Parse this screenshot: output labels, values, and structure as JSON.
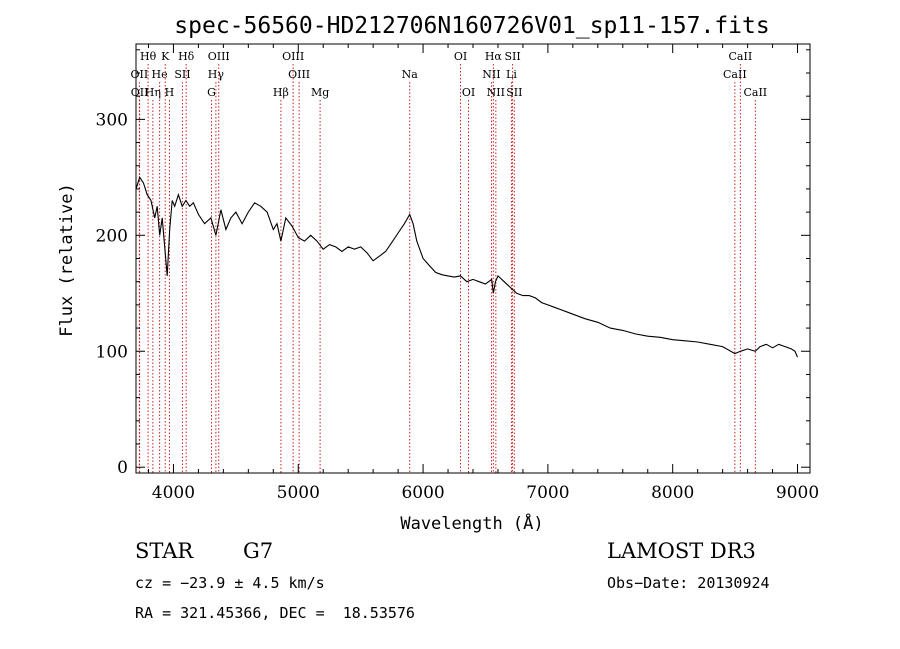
{
  "chart_data": {
    "type": "line",
    "title": "spec-56560-HD212706N160726V01_sp11-157.fits",
    "xlabel": "Wavelength (Å)",
    "ylabel": "Flux (relative)",
    "xlim": [
      3700,
      9100
    ],
    "ylim": [
      -5,
      365
    ],
    "xticks": [
      4000,
      5000,
      6000,
      7000,
      8000,
      9000
    ],
    "yticks": [
      0,
      100,
      200,
      300
    ],
    "series": [
      {
        "name": "flux",
        "x": [
          3700,
          3730,
          3760,
          3790,
          3820,
          3850,
          3870,
          3890,
          3910,
          3930,
          3950,
          3970,
          3990,
          4010,
          4040,
          4070,
          4100,
          4130,
          4160,
          4200,
          4250,
          4300,
          4340,
          4380,
          4420,
          4460,
          4500,
          4550,
          4600,
          4650,
          4700,
          4750,
          4800,
          4830,
          4861,
          4900,
          4950,
          5000,
          5050,
          5100,
          5150,
          5200,
          5250,
          5300,
          5350,
          5400,
          5450,
          5500,
          5550,
          5600,
          5650,
          5700,
          5750,
          5800,
          5850,
          5893,
          5920,
          5950,
          6000,
          6050,
          6100,
          6150,
          6200,
          6250,
          6300,
          6350,
          6400,
          6450,
          6500,
          6550,
          6563,
          6580,
          6600,
          6650,
          6700,
          6750,
          6800,
          6850,
          6900,
          6950,
          7000,
          7050,
          7100,
          7150,
          7200,
          7300,
          7400,
          7500,
          7600,
          7700,
          7800,
          7900,
          8000,
          8100,
          8200,
          8300,
          8400,
          8498,
          8542,
          8600,
          8662,
          8700,
          8750,
          8800,
          8850,
          8900,
          8950,
          8980,
          9000
        ],
        "values": [
          240,
          250,
          245,
          235,
          230,
          215,
          225,
          200,
          215,
          190,
          165,
          205,
          230,
          225,
          235,
          225,
          230,
          225,
          228,
          218,
          210,
          215,
          200,
          222,
          205,
          215,
          220,
          210,
          220,
          228,
          225,
          220,
          205,
          210,
          195,
          215,
          208,
          198,
          195,
          200,
          195,
          188,
          192,
          190,
          186,
          190,
          188,
          190,
          185,
          178,
          182,
          186,
          194,
          202,
          210,
          218,
          210,
          195,
          180,
          174,
          168,
          166,
          165,
          164,
          165,
          160,
          162,
          160,
          158,
          162,
          150,
          160,
          165,
          160,
          155,
          150,
          148,
          148,
          146,
          142,
          140,
          138,
          136,
          134,
          132,
          128,
          125,
          120,
          118,
          115,
          113,
          112,
          110,
          109,
          108,
          106,
          104,
          98,
          100,
          102,
          100,
          104,
          106,
          103,
          106,
          104,
          102,
          100,
          95
        ]
      }
    ],
    "spectral_lines_top": [
      {
        "label": "Hθ",
        "wavelength": 3797
      },
      {
        "label": "K",
        "wavelength": 3934
      },
      {
        "label": "Hδ",
        "wavelength": 4102
      },
      {
        "label": "OIII",
        "wavelength": 4363
      },
      {
        "label": "OIII",
        "wavelength": 4959
      },
      {
        "label": "OI",
        "wavelength": 6300
      },
      {
        "label": "Hα",
        "wavelength": 6563
      },
      {
        "label": "SII",
        "wavelength": 6717
      },
      {
        "label": "CaII",
        "wavelength": 8542
      }
    ],
    "spectral_lines_mid": [
      {
        "label": "OII",
        "wavelength": 3727
      },
      {
        "label": "He",
        "wavelength": 3889
      },
      {
        "label": "SII",
        "wavelength": 4072
      },
      {
        "label": "Hγ",
        "wavelength": 4340
      },
      {
        "label": "OIII",
        "wavelength": 5007
      },
      {
        "label": "Na",
        "wavelength": 5893
      },
      {
        "label": "NII",
        "wavelength": 6548
      },
      {
        "label": "Li",
        "wavelength": 6708
      },
      {
        "label": "CaII",
        "wavelength": 8498
      }
    ],
    "spectral_lines_bottom": [
      {
        "label": "OII",
        "wavelength": 3729
      },
      {
        "label": "Hη",
        "wavelength": 3835
      },
      {
        "label": "H",
        "wavelength": 3968
      },
      {
        "label": "G",
        "wavelength": 4305
      },
      {
        "label": "Hβ",
        "wavelength": 4861
      },
      {
        "label": "Mg",
        "wavelength": 5175
      },
      {
        "label": "OI",
        "wavelength": 6364
      },
      {
        "label": "NII",
        "wavelength": 6583
      },
      {
        "label": "SII",
        "wavelength": 6731
      },
      {
        "label": "CaII",
        "wavelength": 8662
      }
    ],
    "line_color": "#000000",
    "marker_color": "#cc2222"
  },
  "info": {
    "class_label": "STAR",
    "subclass": "G7",
    "survey": "LAMOST DR3",
    "cz": "cz = −23.9 ± 4.5 km/s",
    "obs_date": "Obs−Date: 20130924",
    "radec": "RA = 321.45366, DEC =  18.53576"
  }
}
